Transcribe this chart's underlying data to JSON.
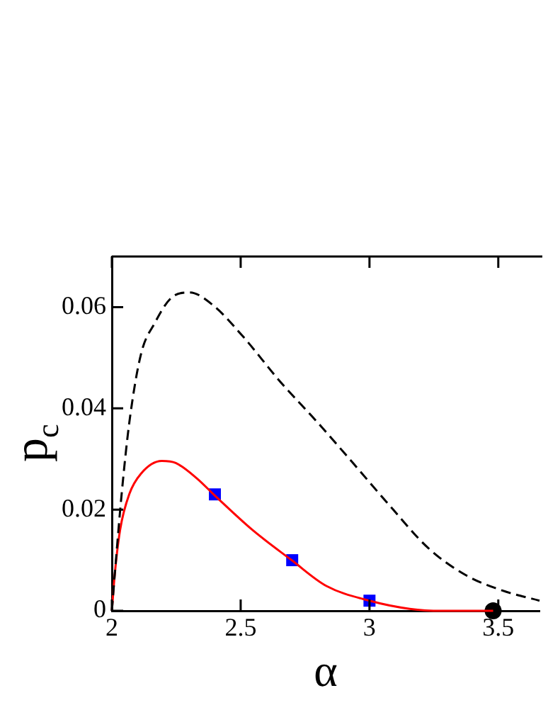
{
  "chart_data": {
    "type": "line",
    "xlabel": "α",
    "ylabel": "p$_{c}$",
    "xlim": [
      2,
      3.66
    ],
    "ylim": [
      0,
      0.07
    ],
    "xticks": [
      2,
      2.5,
      3,
      3.5
    ],
    "yticks": [
      0,
      0.02,
      0.04,
      0.06
    ],
    "grid": false,
    "legend": false,
    "series": [
      {
        "type": "line",
        "color": "#000000",
        "line_style": "dashed",
        "marker": "none",
        "x": [
          2,
          2.014,
          2.038,
          2.068,
          2.113,
          2.167,
          2.23,
          2.302,
          2.392,
          2.509,
          2.653,
          2.797,
          2.941,
          3.085,
          3.228,
          3.372,
          3.516,
          3.66
        ],
        "values": [
          0,
          0.0089,
          0.0231,
          0.0373,
          0.0507,
          0.0569,
          0.0618,
          0.0629,
          0.0604,
          0.0542,
          0.0453,
          0.0373,
          0.0289,
          0.0204,
          0.0124,
          0.0071,
          0.004,
          0.002
        ]
      },
      {
        "type": "line",
        "color": "#ff0000",
        "line_style": "solid",
        "marker": "none",
        "x": [
          2,
          2.011,
          2.032,
          2.068,
          2.113,
          2.194,
          2.248,
          2.329,
          2.401,
          2.545,
          2.698,
          2.833,
          3.0,
          3.156,
          3.28,
          3.48
        ],
        "values": [
          0,
          0.0071,
          0.016,
          0.0231,
          0.0271,
          0.0296,
          0.0292,
          0.0262,
          0.0227,
          0.016,
          0.01,
          0.0049,
          0.002,
          0.0004,
          0,
          0
        ]
      },
      {
        "type": "scatter",
        "color": "#0000ff",
        "marker": "square",
        "x": [
          2.4,
          2.7,
          3.0
        ],
        "values": [
          0.023,
          0.01,
          0.002
        ]
      },
      {
        "type": "scatter",
        "color": "#000000",
        "marker": "circle",
        "x": [
          3.48
        ],
        "values": [
          0
        ]
      }
    ]
  }
}
